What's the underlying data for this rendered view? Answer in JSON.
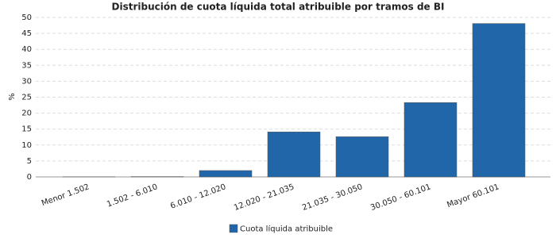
{
  "chart_data": {
    "type": "bar",
    "title": "Distribución de cuota líquida total atribuible por tramos de BI",
    "y_label": "%",
    "categories": [
      "Menor 1.502",
      "1.502 - 6.010",
      "6.010 - 12.020",
      "12.020 - 21.035",
      "21.035 - 30.050",
      "30.050 - 60.101",
      "Mayor 60.101"
    ],
    "series": [
      {
        "name": "Cuota líquida atribuible",
        "color": "#2166a8",
        "values": [
          0.05,
          0.1,
          2,
          14.1,
          12.6,
          23.3,
          48.1
        ]
      }
    ],
    "ylim": [
      0,
      50
    ],
    "yticks": [
      0,
      5,
      10,
      15,
      20,
      25,
      30,
      35,
      40,
      45,
      50
    ],
    "grid": true
  }
}
